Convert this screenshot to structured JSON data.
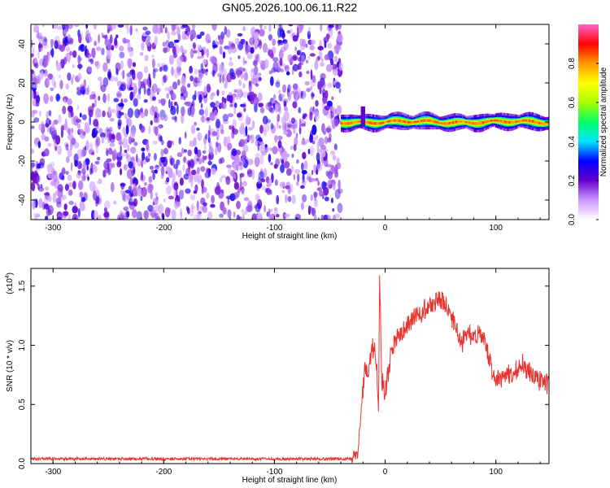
{
  "title": "GN05.2026.100.06.11.R22",
  "chart_data": [
    {
      "type": "heatmap",
      "title": "GN05.2026.100.06.11.R22",
      "xlabel": "Height of straight line (km)",
      "ylabel": "Frequency (Hz)",
      "xlim": [
        -320,
        148
      ],
      "ylim": [
        -50,
        50
      ],
      "xticks": [
        -300,
        -200,
        -100,
        0,
        100
      ],
      "yticks": [
        -40,
        -20,
        0,
        20,
        40
      ],
      "noise_region_x": [
        -320,
        -40
      ],
      "signal_band_hz": [
        -3,
        3
      ],
      "colorbar": {
        "label": "Normalized spectral amplitude",
        "range": [
          0,
          1
        ],
        "ticks": [
          "0.0",
          "0.2",
          "0.4",
          "0.6",
          "0.8"
        ],
        "colormap": [
          "#ffffff",
          "#cc99ff",
          "#6600cc",
          "#0000ff",
          "#00e5ff",
          "#00ff66",
          "#aaff00",
          "#ffff00",
          "#ff9900",
          "#ff0000",
          "#ff66cc"
        ]
      }
    },
    {
      "type": "line",
      "xlabel": "Height of straight line (km)",
      "ylabel": "SNR (10 * v/v)",
      "multiplier": "(x10",
      "multiplier_exp": "4",
      "multiplier_close": ")",
      "xlim": [
        -320,
        148
      ],
      "ylim": [
        0,
        1.65
      ],
      "xticks": [
        -300,
        -200,
        -100,
        0,
        100
      ],
      "yticks": [
        "0.0",
        "0.5",
        "1.0",
        "1.5"
      ],
      "series": [
        {
          "name": "SNR",
          "color": "#e8322d",
          "x": [
            -320,
            -250,
            -150,
            -60,
            -30,
            -25,
            -22,
            -20,
            -18,
            -15,
            -12,
            -10,
            -8,
            -6,
            -5,
            -3,
            0,
            5,
            10,
            15,
            20,
            25,
            30,
            35,
            40,
            45,
            50,
            55,
            60,
            65,
            70,
            75,
            80,
            85,
            90,
            95,
            98,
            100,
            105,
            110,
            115,
            120,
            125,
            130,
            135,
            140,
            148
          ],
          "y": [
            0.04,
            0.04,
            0.04,
            0.04,
            0.04,
            0.1,
            0.45,
            0.65,
            0.85,
            0.75,
            0.95,
            1.0,
            0.9,
            0.45,
            1.55,
            0.7,
            0.6,
            0.9,
            1.05,
            1.1,
            1.17,
            1.23,
            1.27,
            1.3,
            1.33,
            1.35,
            1.37,
            1.33,
            1.22,
            1.12,
            1.02,
            1.12,
            1.05,
            1.12,
            1.03,
            0.85,
            0.75,
            0.72,
            0.72,
            0.76,
            0.74,
            0.8,
            0.84,
            0.78,
            0.72,
            0.7,
            0.66
          ]
        }
      ]
    }
  ]
}
